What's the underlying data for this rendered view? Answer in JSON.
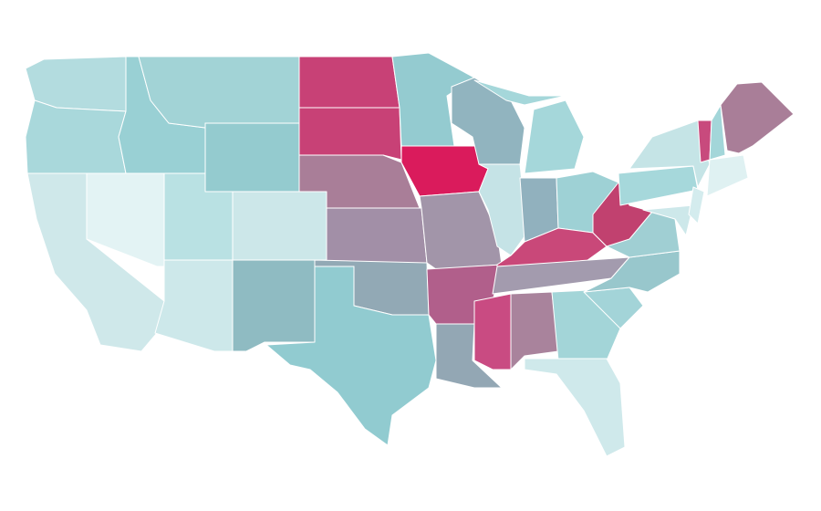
{
  "map": {
    "fills": [
      "#b3dcdf",
      "#a9d8db",
      "#cfe8ea",
      "#e3f3f4",
      "#99d0d4",
      "#a2d3d6",
      "#94cbcf",
      "#b9e1e3",
      "#cce7e9",
      "#cde8ea",
      "#8fbbc2",
      "#c84176",
      "#c84176",
      "#a97e98",
      "#a28fa7",
      "#92a9b5",
      "#91cbd0",
      "#94cbd0",
      "#da1b5c",
      "#a295a9",
      "#b15f8b",
      "#93a7b4",
      "#91b4bf",
      "#c5e3e6",
      "#a5d7da",
      "#91b1be",
      "#9ed1d5",
      "#c94879",
      "#a39bae",
      "#c94b82",
      "#a9839c",
      "#a3d5d8",
      "#cfe9eb",
      "#a3d4d8",
      "#98c7cc",
      "#a0cfd3",
      "#c1416f",
      "#a6d8db",
      "#c5e4e6",
      "#cde8ea",
      "#d4ecee",
      "#c84a7d",
      "#a3d6d9",
      "#a97e98",
      "#dff1f2"
    ]
  }
}
